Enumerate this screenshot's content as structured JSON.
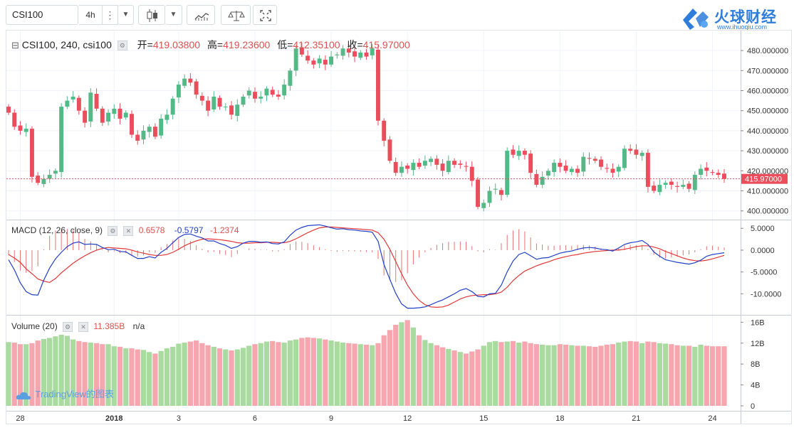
{
  "toolbar": {
    "symbol": "CSI100",
    "interval": "4h",
    "more_icon": "vertical-dots-icon",
    "dropdown_icon": "caret-down-icon",
    "chart_type_icon": "candlestick-icon",
    "indicators_icon": "indicators-icon",
    "compare_icon": "scale-compare-icon",
    "fullscreen_icon": "fullscreen-icon"
  },
  "brand": {
    "title": "火球财经",
    "url": "www.ihuoqiu.com",
    "color": "#2e7ddb"
  },
  "legend": {
    "symbol": "CSI100, 240, csi100",
    "open_label": "开=",
    "open": "419.03800",
    "high_label": "高=",
    "high": "419.23600",
    "low_label": "低=",
    "low": "412.35100",
    "close_label": "收=",
    "close": "415.97000"
  },
  "macd_legend": {
    "label": "MACD (12, 26, close, 9)",
    "hist": "0.6578",
    "macd": "-0.5797",
    "signal": "-1.2374"
  },
  "volume_legend": {
    "label": "Volume (20)",
    "value": "11.385B",
    "ma": "n/a"
  },
  "watermark": "TradingView的图表",
  "colors": {
    "up": "#53b987",
    "down": "#eb4d5c",
    "vol_up": "#a9dba0",
    "vol_down": "#f5a6ae",
    "macd_line": "#2140c8",
    "signal_line": "#e33838",
    "grid": "#f0f3fa"
  },
  "chart_data": {
    "type": "candlestick",
    "price_axis": {
      "ticks": [
        "480.000000",
        "470.000000",
        "460.000000",
        "450.000000",
        "440.000000",
        "430.000000",
        "420.000000",
        "410.000000",
        "400.000000"
      ],
      "range": [
        396,
        485
      ],
      "last_price": 415.97,
      "last_label": "415.97000"
    },
    "macd_axis": {
      "ticks": [
        "5.0000",
        "0.0000",
        "-5.0000",
        "-10.0000"
      ],
      "range": [
        -14.5,
        6.5
      ]
    },
    "volume_axis": {
      "ticks": [
        "16B",
        "12B",
        "8B",
        "4B",
        "0"
      ],
      "range": [
        0,
        17
      ]
    },
    "x_labels": [
      {
        "i": 2,
        "label": "28"
      },
      {
        "i": 18,
        "label": "2018"
      },
      {
        "i": 29,
        "label": "3"
      },
      {
        "i": 42,
        "label": "6"
      },
      {
        "i": 55,
        "label": "9"
      },
      {
        "i": 68,
        "label": "12"
      },
      {
        "i": 81,
        "label": "15"
      },
      {
        "i": 94,
        "label": "18"
      },
      {
        "i": 107,
        "label": "21"
      },
      {
        "i": 120,
        "label": "24"
      }
    ],
    "closes": [
      449,
      442,
      440,
      441,
      417,
      414,
      416,
      418,
      420,
      452,
      455,
      457,
      450,
      444,
      459,
      451,
      444,
      449,
      451,
      446,
      449,
      438,
      435,
      440,
      442,
      437,
      446,
      448,
      456,
      463,
      466,
      464,
      458,
      455,
      450,
      457,
      452,
      452,
      448,
      453,
      457,
      460,
      456,
      457,
      461,
      458,
      457,
      463,
      470,
      481,
      478,
      475,
      473,
      476,
      473,
      477,
      478,
      481,
      479,
      477,
      479,
      477,
      481,
      445,
      435,
      425,
      419,
      422,
      421,
      424,
      422,
      425,
      426,
      423,
      420,
      425,
      423,
      423,
      422,
      415,
      402,
      404,
      410,
      411,
      408,
      430,
      428,
      430,
      428,
      419,
      413,
      417,
      420,
      424,
      422,
      420,
      421,
      419,
      427,
      426,
      425,
      422,
      421,
      419,
      422,
      431,
      430,
      428,
      429,
      412,
      410,
      413,
      414,
      413,
      412,
      413,
      411,
      418,
      421,
      420,
      419,
      418,
      416
    ],
    "macd": [
      -2.2,
      -4.5,
      -7.5,
      -9.5,
      -10.2,
      -10.3,
      -6.9,
      -4.1,
      -2.0,
      -0.5,
      0.8,
      1.6,
      1.9,
      1.3,
      1.4,
      1.3,
      0.6,
      0.1,
      0.2,
      -0.3,
      -0.4,
      -1.2,
      -1.9,
      -1.9,
      -1.5,
      -1.8,
      -0.5,
      0.4,
      1.7,
      2.9,
      3.6,
      3.7,
      3.2,
      2.8,
      2.1,
      2.1,
      1.5,
      1.1,
      0.4,
      0.8,
      1.6,
      2.0,
      2.0,
      1.8,
      1.9,
      1.5,
      1.4,
      1.9,
      3.4,
      4.6,
      5.2,
      5.6,
      5.7,
      5.8,
      5.5,
      5.1,
      4.8,
      4.9,
      4.7,
      4.6,
      4.4,
      4.3,
      4.1,
      2.0,
      -3.3,
      -6.7,
      -9.9,
      -12.3,
      -13.3,
      -13.3,
      -13.2,
      -13.0,
      -12.5,
      -11.9,
      -11.4,
      -10.7,
      -10.0,
      -9.2,
      -8.8,
      -9.5,
      -10.6,
      -10.7,
      -10.0,
      -9.9,
      -8.0,
      -5.0,
      -2.5,
      -1.0,
      -0.5,
      -1.3,
      -2.1,
      -1.8,
      -1.7,
      -1.2,
      -0.7,
      -0.4,
      -0.2,
      0.2,
      0.5,
      0.6,
      0.5,
      0.2,
      0.1,
      -0.2,
      0.5,
      1.3,
      1.7,
      1.9,
      2.2,
      1.3,
      -0.4,
      -1.4,
      -2.2,
      -2.5,
      -2.8,
      -3.0,
      -3.2,
      -2.9,
      -2.3,
      -1.4,
      -1.0,
      -0.8,
      -0.6
    ],
    "signal": [
      -1.0,
      -1.8,
      -2.8,
      -4.3,
      -5.4,
      -6.6,
      -7.1,
      -7.4,
      -6.5,
      -5.2,
      -4.1,
      -3.0,
      -2.1,
      -1.3,
      -0.6,
      0.0,
      0.4,
      0.6,
      0.5,
      0.4,
      0.3,
      0.0,
      -0.4,
      -0.7,
      -1.0,
      -1.2,
      -1.2,
      -1.0,
      -0.5,
      0.2,
      1.0,
      1.6,
      2.1,
      2.5,
      2.6,
      2.5,
      2.4,
      2.2,
      2.0,
      1.7,
      1.6,
      1.6,
      1.7,
      1.7,
      1.8,
      1.8,
      1.7,
      1.7,
      2.0,
      2.6,
      3.3,
      4.0,
      4.6,
      5.1,
      5.3,
      5.3,
      5.2,
      5.1,
      5.0,
      4.9,
      4.8,
      4.7,
      4.6,
      4.0,
      2.5,
      0.2,
      -2.6,
      -5.4,
      -8.0,
      -10.0,
      -11.5,
      -12.5,
      -13.0,
      -13.1,
      -13.0,
      -12.6,
      -11.9,
      -11.2,
      -10.7,
      -10.4,
      -10.3,
      -10.2,
      -10.2,
      -10.0,
      -9.6,
      -8.5,
      -7.0,
      -5.8,
      -4.8,
      -4.2,
      -3.6,
      -3.1,
      -2.7,
      -2.2,
      -1.8,
      -1.5,
      -1.2,
      -1.0,
      -0.7,
      -0.5,
      -0.3,
      -0.2,
      -0.1,
      0.0,
      0.0,
      0.2,
      0.5,
      0.8,
      1.0,
      1.0,
      0.7,
      0.3,
      -0.3,
      -0.8,
      -1.3,
      -1.8,
      -2.2,
      -2.4,
      -2.5,
      -2.3,
      -2.0,
      -1.6,
      -1.2
    ],
    "volume": [
      12.2,
      12.1,
      11.8,
      11.8,
      12.0,
      12.5,
      12.8,
      13.0,
      13.3,
      13.6,
      13.4,
      12.7,
      12.4,
      12.2,
      12.1,
      12.0,
      11.8,
      11.8,
      11.4,
      11.3,
      11.0,
      11.0,
      10.8,
      10.7,
      10.3,
      10.0,
      10.5,
      11.0,
      11.3,
      11.9,
      12.1,
      12.3,
      12.5,
      12.0,
      11.6,
      11.3,
      11.0,
      10.8,
      10.6,
      10.8,
      11.1,
      11.5,
      11.8,
      12.0,
      12.3,
      12.4,
      12.2,
      12.1,
      12.5,
      12.7,
      13.0,
      13.1,
      13.0,
      12.9,
      12.7,
      12.5,
      12.3,
      12.1,
      12.0,
      11.9,
      11.8,
      11.7,
      11.6,
      12.0,
      13.5,
      14.5,
      15.5,
      16.0,
      16.4,
      15.0,
      13.5,
      12.6,
      12.0,
      11.6,
      11.2,
      10.9,
      10.6,
      10.3,
      10.0,
      10.4,
      10.8,
      11.5,
      12.2,
      12.4,
      12.2,
      12.3,
      12.4,
      12.1,
      12.3,
      12.0,
      11.8,
      11.7,
      11.6,
      11.6,
      11.8,
      11.7,
      11.6,
      11.5,
      11.5,
      11.4,
      11.3,
      11.5,
      11.7,
      11.8,
      12.1,
      12.3,
      12.4,
      12.3,
      12.0,
      12.3,
      12.2,
      12.0,
      11.9,
      11.8,
      11.6,
      11.5,
      11.5,
      11.3,
      11.7,
      11.5,
      11.4,
      11.4,
      11.4
    ]
  }
}
